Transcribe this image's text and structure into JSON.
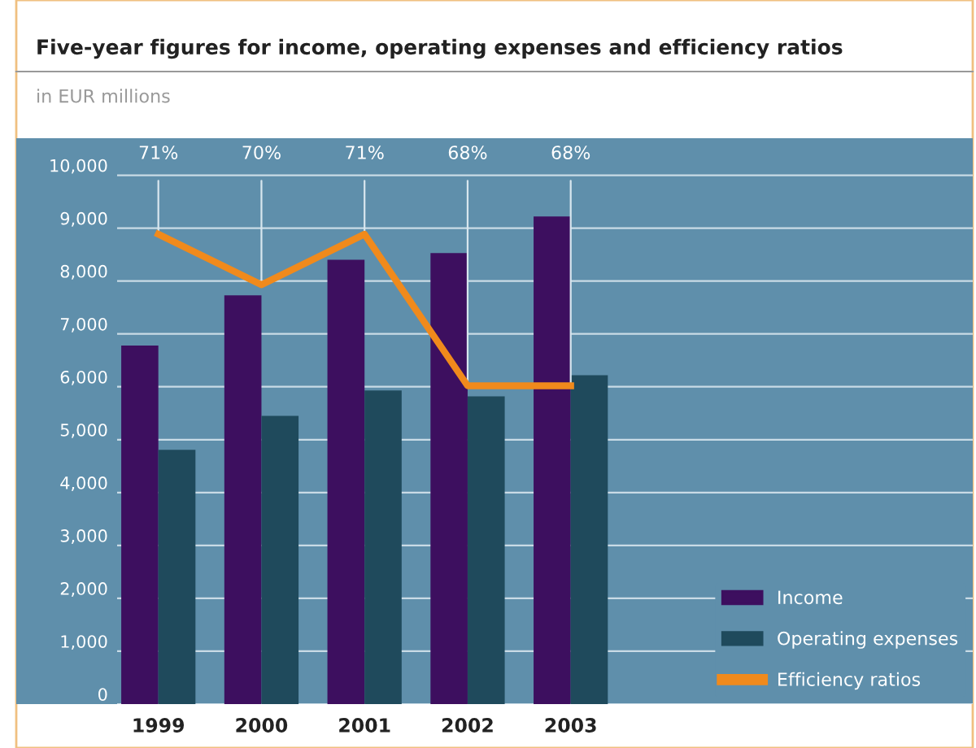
{
  "chart_data": {
    "type": "bar",
    "title": "Five-year figures for income, operating expenses and efficiency ratios",
    "subtitle": "in EUR millions",
    "categories": [
      "1999",
      "2000",
      "2001",
      "2002",
      "2003"
    ],
    "series": [
      {
        "name": "Income",
        "color": "#3d0f5f",
        "values": [
          6780,
          7730,
          8400,
          8530,
          9220
        ]
      },
      {
        "name": "Operating expenses",
        "color": "#1f4a5c",
        "values": [
          4810,
          5450,
          5930,
          5820,
          6220
        ]
      },
      {
        "name": "Efficiency ratios",
        "type": "line",
        "axis": "y2",
        "color": "#f08a1c",
        "values": [
          71,
          70,
          71,
          68,
          68
        ],
        "value_labels": [
          "71%",
          "70%",
          "71%",
          "68%",
          "68%"
        ]
      }
    ],
    "ylim": [
      0,
      10700
    ],
    "yticks": [
      {
        "value": 0,
        "label": "0"
      },
      {
        "value": 1000,
        "label": "1,000"
      },
      {
        "value": 2000,
        "label": "2,000"
      },
      {
        "value": 3000,
        "label": "3,000"
      },
      {
        "value": 4000,
        "label": "4,000"
      },
      {
        "value": 5000,
        "label": "5,000"
      },
      {
        "value": 6000,
        "label": "6,000"
      },
      {
        "value": 7000,
        "label": "7,000"
      },
      {
        "value": 8000,
        "label": "8,000"
      },
      {
        "value": 9000,
        "label": "9,000"
      },
      {
        "value": 10000,
        "label": "10,000"
      }
    ],
    "y2lim": [
      61.7,
      72.9
    ],
    "grid": "y",
    "legend": "bottom right",
    "marker": "none",
    "line_style": "solid"
  }
}
